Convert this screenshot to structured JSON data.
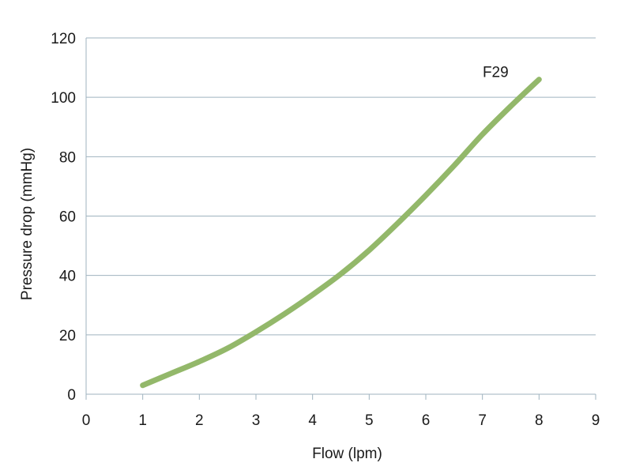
{
  "chart_data": {
    "type": "line",
    "title": "",
    "xlabel": "Flow (lpm)",
    "ylabel": "Pressure drop (mmHg)",
    "xlim": [
      0,
      9
    ],
    "ylim": [
      0,
      120
    ],
    "x_ticks": [
      0,
      1,
      2,
      3,
      4,
      5,
      6,
      7,
      8,
      9
    ],
    "y_ticks": [
      0,
      20,
      40,
      60,
      80,
      100,
      120
    ],
    "grid": "horizontal",
    "series": [
      {
        "name": "F29",
        "color": "#93b86a",
        "x": [
          1,
          1.5,
          2,
          2.5,
          3,
          3.5,
          4,
          4.5,
          5,
          5.5,
          6,
          6.5,
          7,
          7.5,
          8
        ],
        "y": [
          3,
          7,
          11,
          15.5,
          21,
          27,
          33.5,
          40.5,
          48.5,
          57.5,
          67,
          77,
          87.5,
          97,
          106
        ]
      }
    ]
  }
}
